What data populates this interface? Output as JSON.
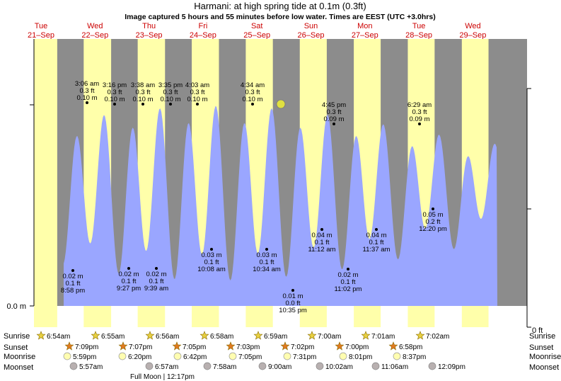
{
  "chart_data": {
    "type": "area",
    "title": "Harmani: at high  spring tide at 0.1m (0.3ft)",
    "subtitle": "Image captured 5 hours and 55 minutes before low water. Times are EEST (UTC +3.0hrs)",
    "xlabel": "",
    "ylabel": "",
    "y_left_label": "0.0 m",
    "y_right_label": "0 ft",
    "days": [
      {
        "dow": "Tue",
        "date": "21–Sep"
      },
      {
        "dow": "Wed",
        "date": "22–Sep"
      },
      {
        "dow": "Thu",
        "date": "23–Sep"
      },
      {
        "dow": "Fri",
        "date": "24–Sep"
      },
      {
        "dow": "Sat",
        "date": "25–Sep"
      },
      {
        "dow": "Sun",
        "date": "26–Sep"
      },
      {
        "dow": "Mon",
        "date": "27–Sep"
      },
      {
        "dow": "Tue",
        "date": "28–Sep"
      },
      {
        "dow": "Wed",
        "date": "29–Sep"
      }
    ],
    "tide_extremes": [
      {
        "type": "low",
        "time": "8:58 pm",
        "m": 0.02,
        "ft": 0.1
      },
      {
        "type": "high",
        "time": "3:06 am",
        "m": 0.1,
        "ft": 0.3
      },
      {
        "type": "high",
        "time": "3:16 pm",
        "m": 0.1,
        "ft": 0.3
      },
      {
        "type": "low",
        "time": "9:27 pm",
        "m": 0.02,
        "ft": 0.1
      },
      {
        "type": "high",
        "time": "3:38 am",
        "m": 0.1,
        "ft": 0.3
      },
      {
        "type": "low",
        "time": "9:39 am",
        "m": 0.02,
        "ft": 0.1
      },
      {
        "type": "high",
        "time": "3:35 pm",
        "m": 0.1,
        "ft": 0.3
      },
      {
        "type": "high",
        "time": "4:03 am",
        "m": 0.1,
        "ft": 0.3
      },
      {
        "type": "low",
        "time": "10:08 am",
        "m": 0.03,
        "ft": 0.1
      },
      {
        "type": "high",
        "time": "4:34 am",
        "m": 0.1,
        "ft": 0.3
      },
      {
        "type": "low",
        "time": "10:34 am",
        "m": 0.03,
        "ft": 0.1
      },
      {
        "type": "low",
        "time": "10:35 pm",
        "m": 0.01,
        "ft": 0.0
      },
      {
        "type": "low",
        "time": "11:12 am",
        "m": 0.04,
        "ft": 0.1
      },
      {
        "type": "high",
        "time": "4:45 pm",
        "m": 0.09,
        "ft": 0.3
      },
      {
        "type": "low",
        "time": "11:02 pm",
        "m": 0.02,
        "ft": 0.1
      },
      {
        "type": "low",
        "time": "11:37 am",
        "m": 0.04,
        "ft": 0.1
      },
      {
        "type": "high",
        "time": "6:29 am",
        "m": 0.09,
        "ft": 0.3
      },
      {
        "type": "low",
        "time": "12:20 pm",
        "m": 0.05,
        "ft": 0.2
      }
    ],
    "sunrise": [
      "6:54am",
      "6:55am",
      "6:56am",
      "6:58am",
      "6:59am",
      "7:00am",
      "7:01am",
      "7:02am"
    ],
    "sunset": [
      "7:09pm",
      "7:07pm",
      "7:05pm",
      "7:03pm",
      "7:02pm",
      "7:00pm",
      "6:58pm"
    ],
    "moonrise": [
      "5:59pm",
      "6:20pm",
      "6:42pm",
      "7:05pm",
      "7:31pm",
      "8:01pm",
      "8:37pm"
    ],
    "moonset": [
      "5:57am",
      "6:57am",
      "7:58am",
      "9:00am",
      "10:02am",
      "11:06am",
      "12:09pm"
    ],
    "full_moon": "Full Moon | 12:17pm",
    "row_labels": {
      "sunrise": "Sunrise",
      "sunset": "Sunset",
      "moonrise": "Moonrise",
      "moonset": "Moonset"
    },
    "colors": {
      "night": "#8c8c8c",
      "day": "#ffffaa",
      "water": "#9aa6ff",
      "day_labels": "#cc0000",
      "moon": "#e0e040"
    }
  }
}
